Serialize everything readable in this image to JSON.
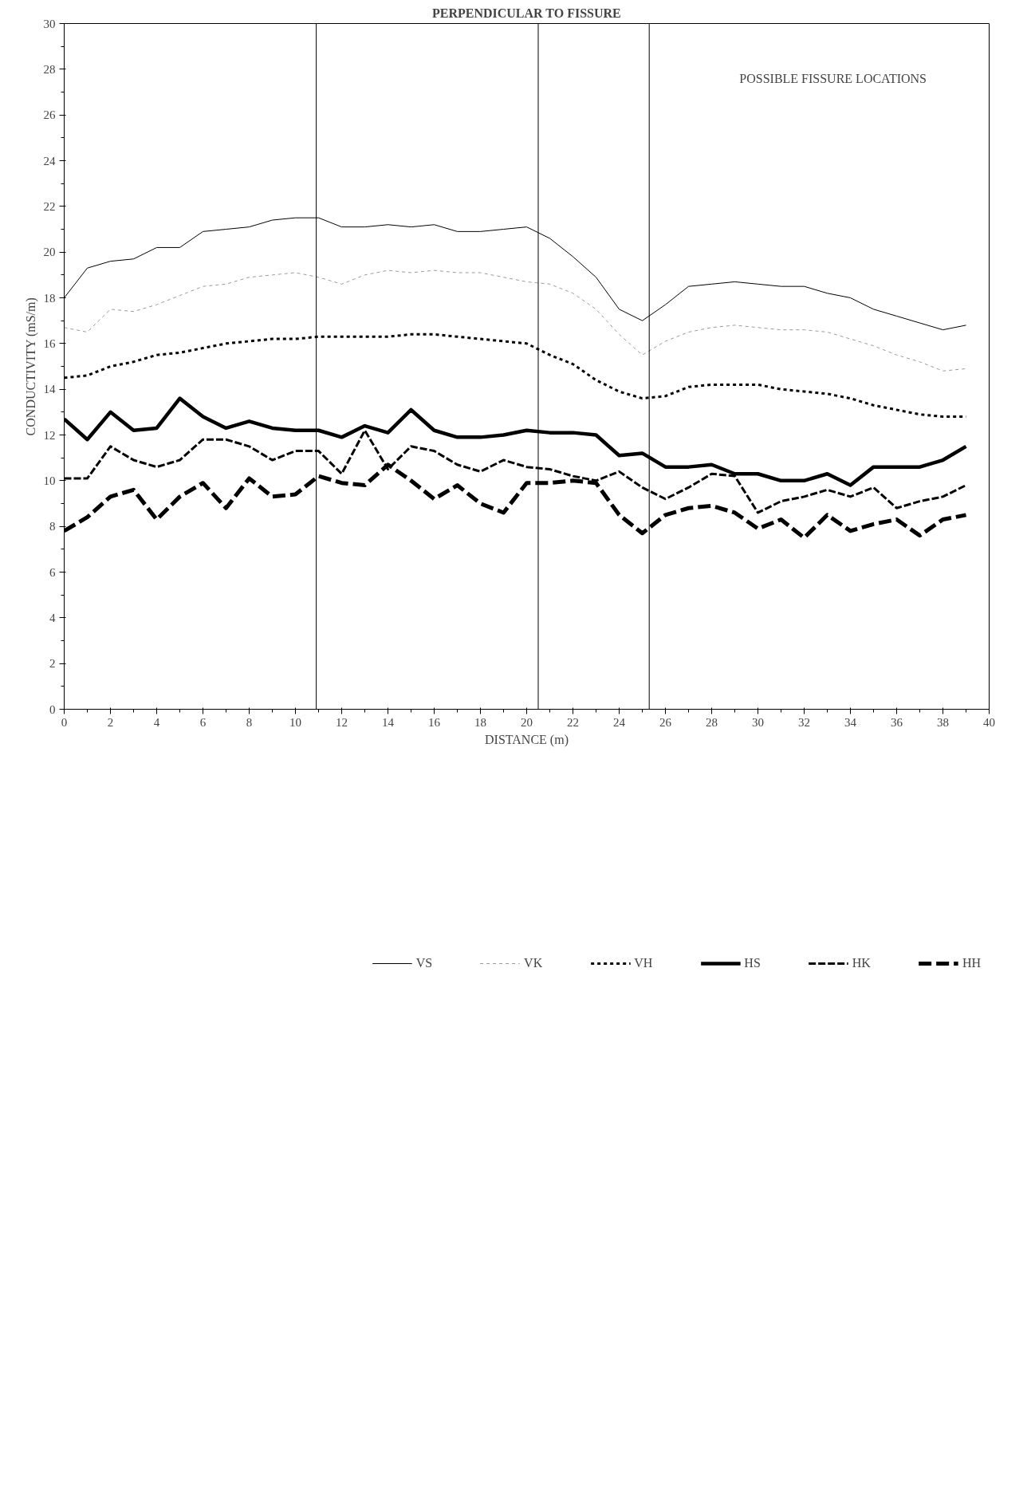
{
  "chart_data": {
    "type": "line",
    "title": "PERPENDICULAR TO FISSURE",
    "xlabel": "DISTANCE (m)",
    "ylabel": "CONDUCTIVITY (mS/m)",
    "x": [
      0,
      1,
      2,
      3,
      4,
      5,
      6,
      7,
      8,
      9,
      10,
      11,
      12,
      13,
      14,
      15,
      16,
      17,
      18,
      19,
      20,
      21,
      22,
      23,
      24,
      25,
      26,
      27,
      28,
      29,
      30,
      31,
      32,
      33,
      34,
      35,
      36,
      37,
      38,
      39
    ],
    "series": [
      {
        "name": "VS",
        "color": "#000000",
        "line_style": "solid",
        "values": [
          18.0,
          19.3,
          19.6,
          19.7,
          20.2,
          20.2,
          20.9,
          21.0,
          21.1,
          21.4,
          21.5,
          21.5,
          21.1,
          21.1,
          21.2,
          21.1,
          21.2,
          20.9,
          20.9,
          21.0,
          21.1,
          20.6,
          19.8,
          18.9,
          17.5,
          17.0,
          17.7,
          18.5,
          18.6,
          18.7,
          18.6,
          18.5,
          18.5,
          18.2,
          18.0,
          17.5,
          17.2,
          16.9,
          16.6,
          16.8
        ]
      },
      {
        "name": "VK",
        "color": "#999999",
        "line_style": "dotted",
        "values": [
          16.7,
          16.5,
          17.5,
          17.4,
          17.7,
          18.1,
          18.5,
          18.6,
          18.9,
          19.0,
          19.1,
          18.9,
          18.6,
          19.0,
          19.2,
          19.1,
          19.2,
          19.1,
          19.1,
          18.9,
          18.7,
          18.6,
          18.2,
          17.5,
          16.4,
          15.5,
          16.1,
          16.5,
          16.7,
          16.8,
          16.7,
          16.6,
          16.6,
          16.5,
          16.2,
          15.9,
          15.5,
          15.2,
          14.8,
          14.9
        ]
      },
      {
        "name": "VH",
        "color": "#000000",
        "line_style": "dotted",
        "values": [
          14.5,
          14.6,
          15.0,
          15.2,
          15.5,
          15.6,
          15.8,
          16.0,
          16.1,
          16.2,
          16.2,
          16.3,
          16.3,
          16.3,
          16.3,
          16.4,
          16.4,
          16.3,
          16.2,
          16.1,
          16.0,
          15.5,
          15.1,
          14.4,
          13.9,
          13.6,
          13.7,
          14.1,
          14.2,
          14.2,
          14.2,
          14.0,
          13.9,
          13.8,
          13.6,
          13.3,
          13.1,
          12.9,
          12.8,
          12.8
        ]
      },
      {
        "name": "HS",
        "color": "#000000",
        "line_style": "solid",
        "values": [
          12.7,
          11.8,
          13.0,
          12.2,
          12.3,
          13.6,
          12.8,
          12.3,
          12.6,
          12.3,
          12.2,
          12.2,
          11.9,
          12.4,
          12.1,
          13.1,
          12.2,
          11.9,
          11.9,
          12.0,
          12.2,
          12.1,
          12.1,
          12.0,
          11.1,
          11.2,
          10.6,
          10.6,
          10.7,
          10.3,
          10.3,
          10.0,
          10.0,
          10.3,
          9.8,
          10.6,
          10.6,
          10.6,
          10.9,
          11.5
        ]
      },
      {
        "name": "HK",
        "color": "#000000",
        "line_style": "dashed",
        "values": [
          10.1,
          10.1,
          11.5,
          10.9,
          10.6,
          10.9,
          11.8,
          11.8,
          11.5,
          10.9,
          11.3,
          11.3,
          10.3,
          12.2,
          10.5,
          11.5,
          11.3,
          10.7,
          10.4,
          10.9,
          10.6,
          10.5,
          10.2,
          10.0,
          10.4,
          9.7,
          9.2,
          9.7,
          10.3,
          10.2,
          8.6,
          9.1,
          9.3,
          9.6,
          9.3,
          9.7,
          8.8,
          9.1,
          9.3,
          9.8
        ]
      },
      {
        "name": "HH",
        "color": "#000000",
        "line_style": "dashed",
        "values": [
          7.8,
          8.4,
          9.3,
          9.6,
          8.3,
          9.3,
          9.9,
          8.8,
          10.1,
          9.3,
          9.4,
          10.2,
          9.9,
          9.8,
          10.7,
          10.0,
          9.2,
          9.8,
          9.0,
          8.6,
          9.9,
          9.9,
          10.0,
          9.9,
          8.5,
          7.7,
          8.5,
          8.8,
          8.9,
          8.6,
          7.9,
          8.3,
          7.5,
          8.5,
          7.8,
          8.1,
          8.3,
          7.6,
          8.3,
          8.5
        ]
      }
    ],
    "xlim": [
      0,
      40
    ],
    "ylim": [
      0,
      30
    ],
    "xticks": [
      0,
      2,
      4,
      6,
      8,
      10,
      12,
      14,
      16,
      18,
      20,
      22,
      24,
      26,
      28,
      30,
      32,
      34,
      36,
      38,
      40
    ],
    "yticks": [
      0,
      2,
      4,
      6,
      8,
      10,
      12,
      14,
      16,
      18,
      20,
      22,
      24,
      26,
      28,
      30
    ],
    "ref_lines": [
      {
        "axis": "x",
        "value": 10.9,
        "color": "#000000"
      },
      {
        "axis": "x",
        "value": 20.5,
        "color": "#000000"
      },
      {
        "axis": "x",
        "value": 25.3,
        "color": "#000000"
      }
    ],
    "annotations": [
      "POSSIBLE FISSURE LOCATIONS"
    ],
    "grid": false,
    "legend": "bottom"
  }
}
